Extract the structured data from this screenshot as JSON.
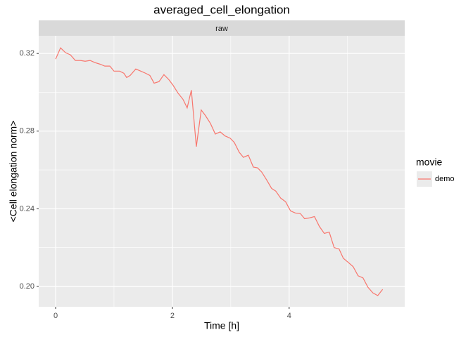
{
  "chart_data": {
    "type": "line",
    "title": "averaged_cell_elongation",
    "facet": "raw",
    "x_label": "Time [h]",
    "y_label": "<Cell elongation norm>",
    "legend_title": "movie",
    "xlim": [
      -0.29,
      5.98
    ],
    "ylim": [
      0.1895,
      0.3291
    ],
    "xticks": [
      0,
      2,
      4
    ],
    "xminor": [
      1,
      3,
      5
    ],
    "yticks": [
      {
        "value": 0.2,
        "label": "0.20"
      },
      0.24,
      0.28,
      0.32
    ],
    "yminor": [
      0.22,
      0.26,
      0.3
    ],
    "grid": true,
    "x": [
      0,
      0.084,
      0.169,
      0.253,
      0.337,
      0.422,
      0.506,
      0.59,
      0.675,
      0.759,
      0.843,
      0.928,
      1.0,
      1.096,
      1.169,
      1.217,
      1.277,
      1.373,
      1.458,
      1.542,
      1.614,
      1.687,
      1.771,
      1.855,
      1.94,
      2.012,
      2.096,
      2.181,
      2.253,
      2.325,
      2.41,
      2.494,
      2.566,
      2.651,
      2.735,
      2.819,
      2.904,
      2.988,
      3.06,
      3.145,
      3.217,
      3.301,
      3.386,
      3.458,
      3.53,
      3.614,
      3.699,
      3.771,
      3.855,
      3.94,
      4.024,
      4.108,
      4.193,
      4.265,
      4.349,
      4.434,
      4.518,
      4.602,
      4.687,
      4.771,
      4.855,
      4.928,
      5.012,
      5.096,
      5.181,
      5.265,
      5.349,
      5.434,
      5.518,
      5.602
    ],
    "series": [
      {
        "name": "demo",
        "color": "#f8766d",
        "values": [
          0.3171,
          0.3229,
          0.3204,
          0.3193,
          0.3164,
          0.3164,
          0.316,
          0.3164,
          0.3153,
          0.3145,
          0.3135,
          0.3135,
          0.3109,
          0.3109,
          0.3098,
          0.3076,
          0.3087,
          0.312,
          0.3109,
          0.3098,
          0.3087,
          0.3047,
          0.3055,
          0.3091,
          0.3065,
          0.3036,
          0.2996,
          0.2964,
          0.292,
          0.3011,
          0.272,
          0.2909,
          0.288,
          0.284,
          0.2785,
          0.2796,
          0.2775,
          0.2764,
          0.2742,
          0.2691,
          0.2665,
          0.2676,
          0.2615,
          0.2611,
          0.2589,
          0.2549,
          0.2505,
          0.2491,
          0.2455,
          0.2436,
          0.2389,
          0.2378,
          0.2375,
          0.2349,
          0.2353,
          0.236,
          0.2309,
          0.2273,
          0.228,
          0.22,
          0.2193,
          0.2145,
          0.2124,
          0.2102,
          0.2055,
          0.2044,
          0.1996,
          0.1967,
          0.1953,
          0.1985
        ]
      }
    ]
  }
}
